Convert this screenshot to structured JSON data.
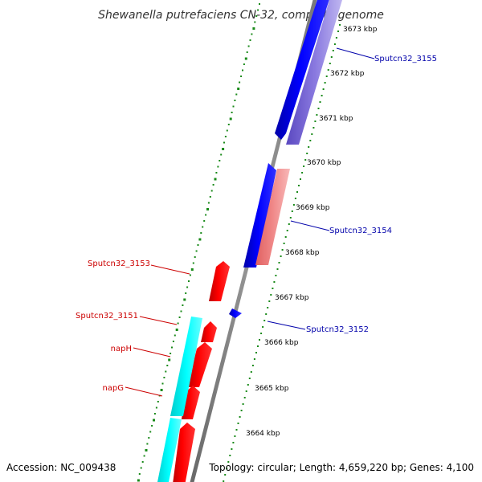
{
  "title": "Shewanella putrefaciens CN-32, complete genome",
  "accession_text": "Accession: NC_009438",
  "summary_text": "Topology: circular; Length: 4,659,220 bp; Genes: 4,100",
  "scale": {
    "unit": "kbp",
    "ticks": [
      {
        "label": "3673 kbp",
        "value": 3673
      },
      {
        "label": "3672 kbp",
        "value": 3672
      },
      {
        "label": "3671 kbp",
        "value": 3671
      },
      {
        "label": "3670 kbp",
        "value": 3670
      },
      {
        "label": "3669 kbp",
        "value": 3669
      },
      {
        "label": "3668 kbp",
        "value": 3668
      },
      {
        "label": "3667 kbp",
        "value": 3667
      },
      {
        "label": "3666 kbp",
        "value": 3666
      },
      {
        "label": "3665 kbp",
        "value": 3665
      },
      {
        "label": "3664 kbp",
        "value": 3664
      }
    ]
  },
  "genes": [
    {
      "label": "Sputcn32_3155",
      "color": "#0000aa"
    },
    {
      "label": "Sputcn32_3154",
      "color": "#0000aa"
    },
    {
      "label": "Sputcn32_3152",
      "color": "#0000aa"
    },
    {
      "label": "Sputcn32_3153",
      "color": "#cc0000"
    },
    {
      "label": "Sputcn32_3151",
      "color": "#cc0000"
    },
    {
      "label": "napH",
      "color": "#cc0000"
    },
    {
      "label": "napG",
      "color": "#cc0000"
    }
  ],
  "colors": {
    "forward_feature": "#0000ff",
    "reverse_feature": "#ff0000",
    "forward_cds": "#8877dd",
    "reverse_cds": "#f08080",
    "rna_feature": "#00ffff",
    "backbone": "#888888",
    "gc_dots": "#1a8a1a"
  }
}
